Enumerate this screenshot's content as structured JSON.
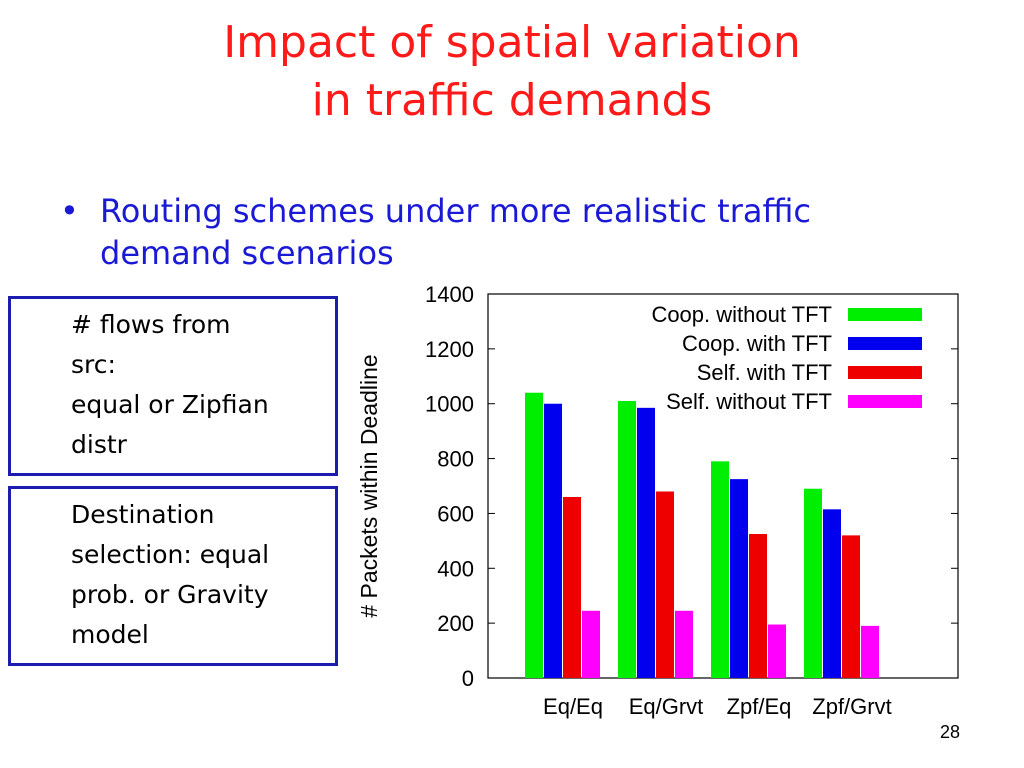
{
  "slide": {
    "title_line1": "Impact of spatial variation",
    "title_line2": "in traffic demands",
    "bullet_marker": "•",
    "bullet_text_line1": "Routing schemes under more realistic traffic",
    "bullet_text_line2": "demand scenarios",
    "box1_lines": [
      "# flows from",
      "src:",
      "equal or Zipfian",
      "distr"
    ],
    "box2_lines": [
      "Destination",
      "selection: equal",
      "prob. or Gravity",
      "model"
    ],
    "slide_number": "28",
    "colors": {
      "title": "#ff1a1a",
      "bullet": "#1a1ad6",
      "box_border": "#1c1cb0"
    }
  },
  "chart_data": {
    "type": "bar",
    "title": "",
    "xlabel": "",
    "ylabel": "# Packets within Deadline",
    "ylim": [
      0,
      1400
    ],
    "yticks": [
      "0",
      "200",
      "400",
      "600",
      "800",
      "1000",
      "1200",
      "1400"
    ],
    "categories": [
      "Eq/Eq",
      "Eq/Grvt",
      "Zpf/Eq",
      "Zpf/Grvt"
    ],
    "legend_position": "top-right",
    "grid": false,
    "series": [
      {
        "name": "Coop. without TFT",
        "color": "#00ee00",
        "values": [
          1040,
          1010,
          790,
          690
        ]
      },
      {
        "name": "Coop. with TFT",
        "color": "#0000ee",
        "values": [
          1000,
          985,
          725,
          615
        ]
      },
      {
        "name": "Self. with TFT",
        "color": "#ee0000",
        "values": [
          660,
          680,
          525,
          520
        ]
      },
      {
        "name": "Self. without TFT",
        "color": "#ff00ff",
        "values": [
          245,
          245,
          195,
          190
        ]
      }
    ]
  }
}
